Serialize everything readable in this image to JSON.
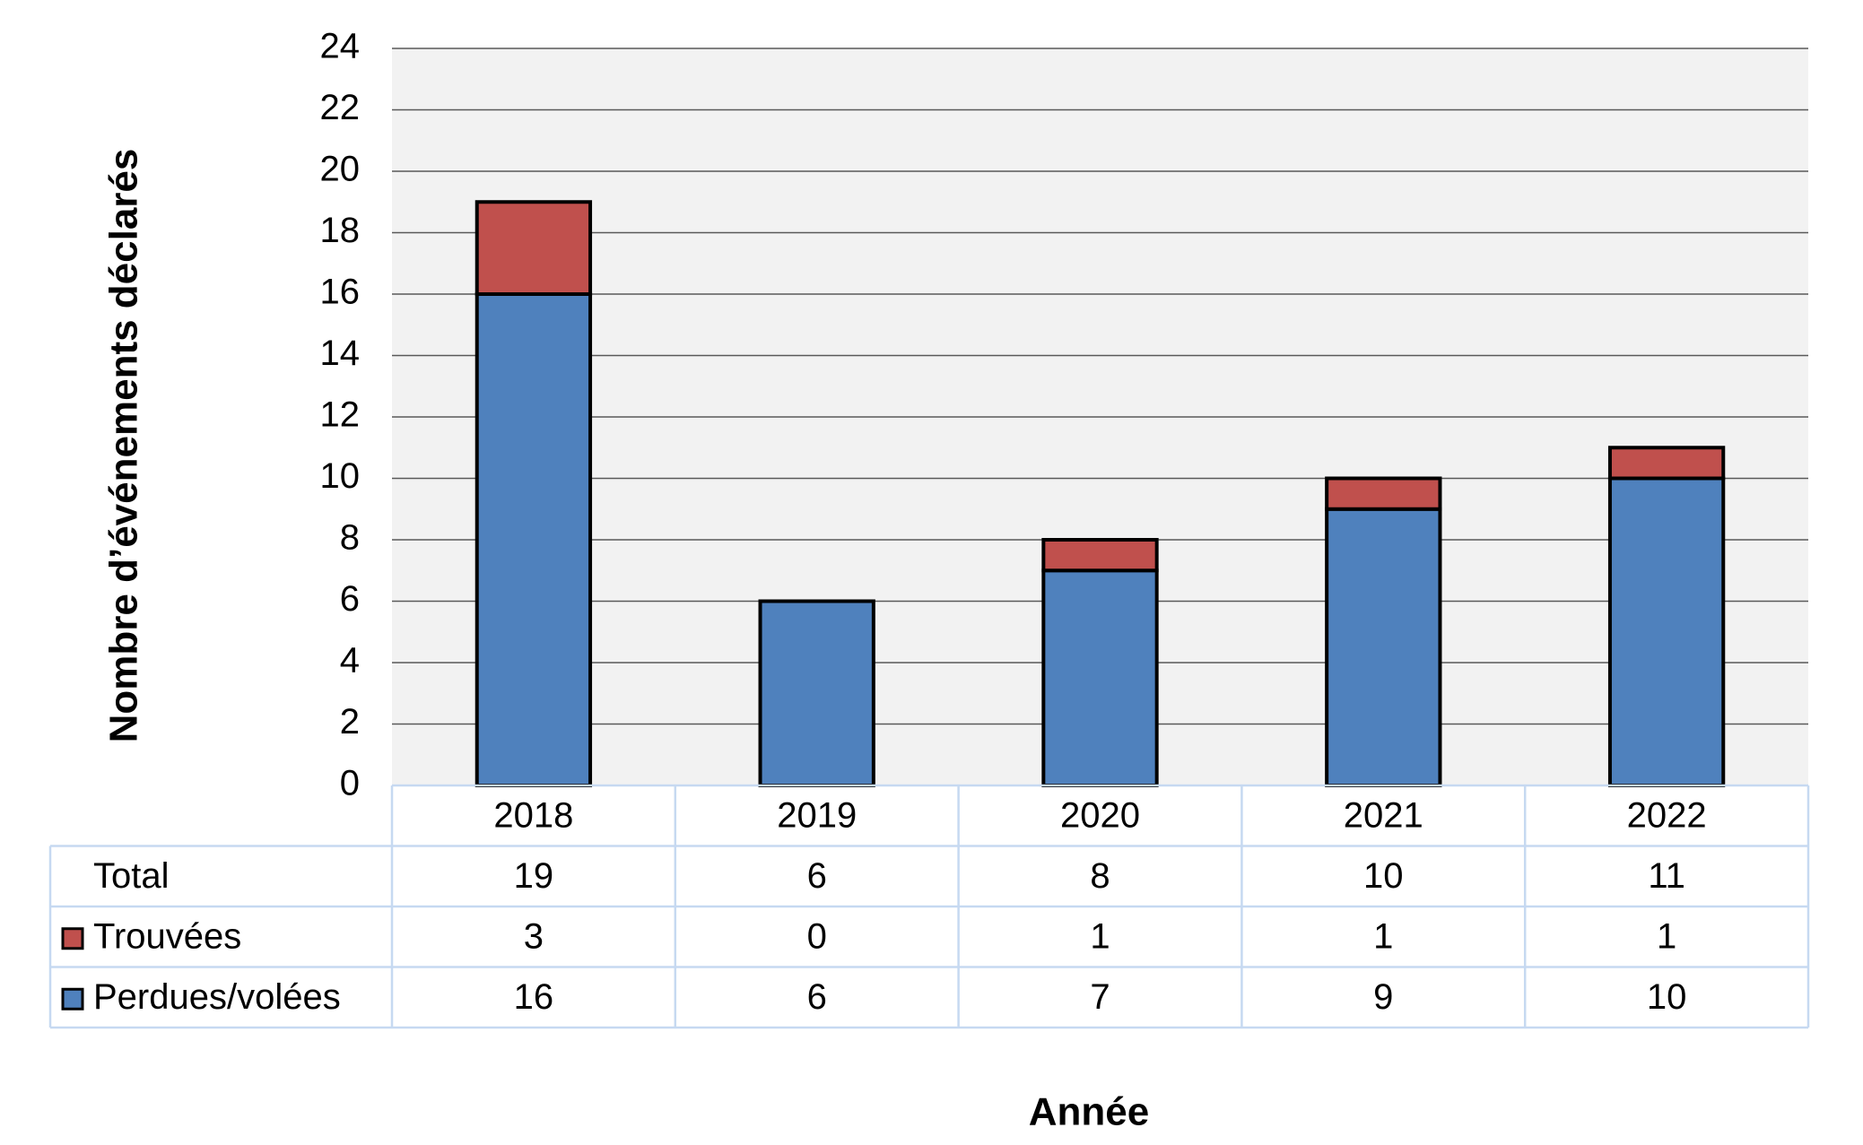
{
  "chart_data": {
    "type": "stacked_bar",
    "x_label": "Année",
    "y_label": "Nombre d’événements déclarés",
    "categories": [
      "2018",
      "2019",
      "2020",
      "2021",
      "2022"
    ],
    "series": [
      {
        "name": "Perdues/volées",
        "color": "#4f81bd",
        "values": [
          16,
          6,
          7,
          9,
          10
        ]
      },
      {
        "name": "Trouvées",
        "color": "#c0504d",
        "values": [
          3,
          0,
          1,
          1,
          1
        ]
      }
    ],
    "totals": {
      "name": "Total",
      "values": [
        19,
        6,
        8,
        10,
        11
      ]
    },
    "ylim": [
      0,
      24
    ],
    "yticks": [
      0,
      2,
      4,
      6,
      8,
      10,
      12,
      14,
      16,
      18,
      20,
      22,
      24
    ],
    "grid": true
  }
}
